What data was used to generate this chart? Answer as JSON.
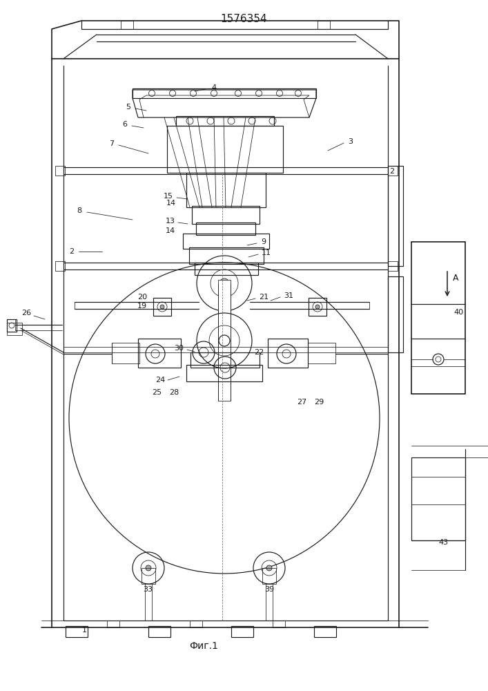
{
  "title": "1576354",
  "fig_label": "Фиг.1",
  "bg_color": "#ffffff",
  "line_color": "#1a1a1a",
  "title_fontsize": 11,
  "label_fontsize": 8,
  "fig_label_fontsize": 10,
  "arrow_label": "А"
}
